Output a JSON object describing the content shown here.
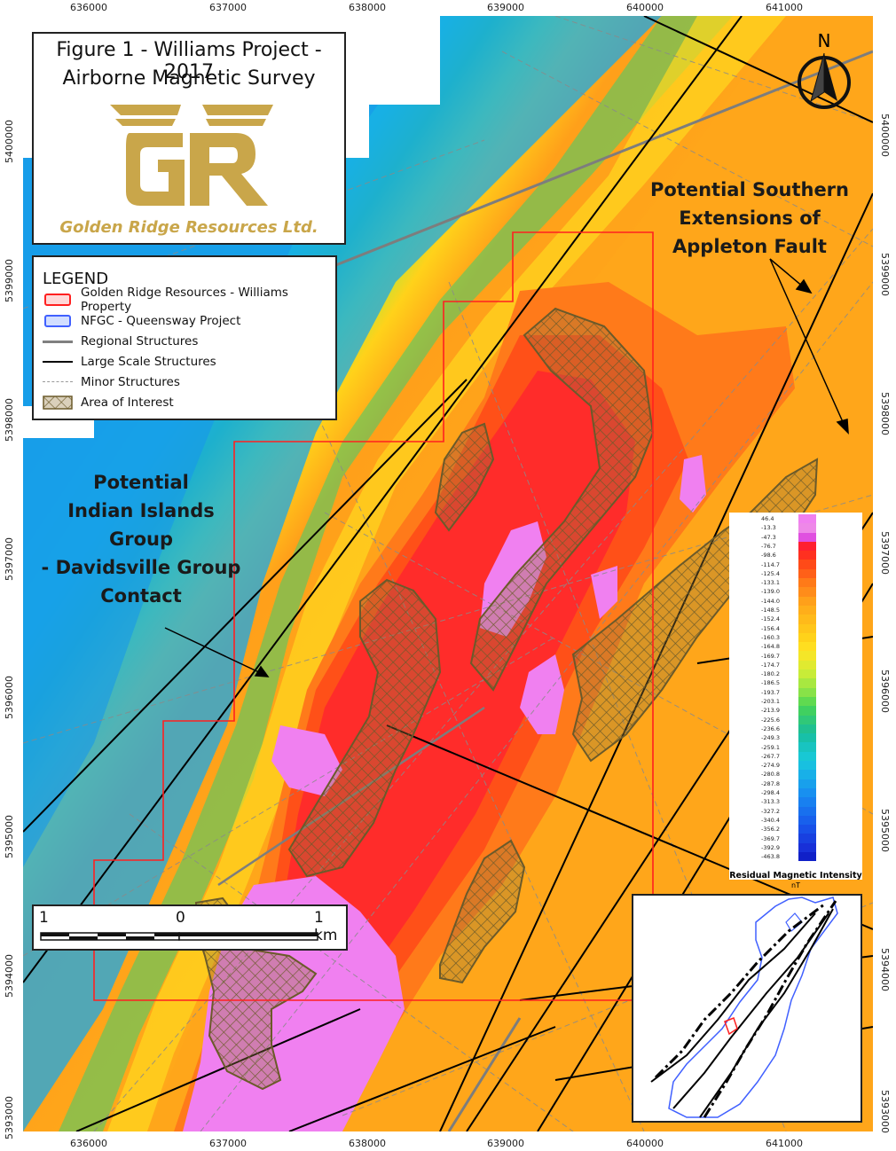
{
  "title": {
    "line1": "Figure 1 - Williams Project - 2017",
    "line2": "Airborne Magnetic Survey"
  },
  "company": {
    "logo_text": "GR",
    "name": "Golden Ridge Resources Ltd."
  },
  "north_arrow": {
    "label": "N",
    "icon": "north-arrow-icon"
  },
  "easting_labels": [
    "636000",
    "637000",
    "638000",
    "639000",
    "640000",
    "641000"
  ],
  "northing_labels": [
    "5393000",
    "5394000",
    "5395000",
    "5396000",
    "5397000",
    "5398000",
    "5399000",
    "5400000"
  ],
  "legend": {
    "title": "LEGEND",
    "items": [
      {
        "label": "Golden Ridge Resources - Williams Property",
        "symbol": "red-outline-box",
        "color": "#ff2020"
      },
      {
        "label": "NFGC - Queensway Project",
        "symbol": "blue-outline-box",
        "color": "#4060ff"
      },
      {
        "label": "Regional Structures",
        "symbol": "gray-line",
        "color": "#808080"
      },
      {
        "label": "Large Scale Structures",
        "symbol": "black-line",
        "color": "#000000"
      },
      {
        "label": "Minor Structures",
        "symbol": "dashed-line",
        "color": "#999999"
      },
      {
        "label": "Area of Interest",
        "symbol": "crosshatch-box",
        "color": "#6b5a2a"
      }
    ]
  },
  "annotations": {
    "contact": "Potential\nIndian Islands\nGroup\n- Davidsville Group\nContact",
    "fault": "Potential Southern\nExtensions of\nAppleton Fault"
  },
  "colorbar": {
    "title": "Residual Magnetic Intensity",
    "unit": "nT",
    "values": [
      "46.4",
      "-13.3",
      "-47.3",
      "-76.7",
      "-98.6",
      "-114.7",
      "-125.4",
      "-133.1",
      "-139.0",
      "-144.0",
      "-148.5",
      "-152.4",
      "-156.4",
      "-160.3",
      "-164.8",
      "-169.7",
      "-174.7",
      "-180.2",
      "-186.5",
      "-193.7",
      "-203.1",
      "-213.9",
      "-225.6",
      "-236.6",
      "-249.3",
      "-259.1",
      "-267.7",
      "-274.9",
      "-280.8",
      "-287.8",
      "-298.4",
      "-313.3",
      "-327.2",
      "-340.4",
      "-356.2",
      "-369.7",
      "-392.9",
      "-463.8"
    ],
    "colors": [
      "#f080f0",
      "#ee88e8",
      "#e050e0",
      "#ff2030",
      "#ff3020",
      "#ff4a18",
      "#ff6018",
      "#ff7a18",
      "#ff8c1a",
      "#ffa01a",
      "#ffae1a",
      "#ffba1a",
      "#ffc61a",
      "#ffd21a",
      "#ffde20",
      "#f4e628",
      "#e0ea30",
      "#c8ec38",
      "#a8e840",
      "#88e248",
      "#60da50",
      "#40d060",
      "#30c878",
      "#20c090",
      "#18c0a8",
      "#18c4c0",
      "#18c8d4",
      "#18c0e0",
      "#18b0e8",
      "#18a0ec",
      "#1890f0",
      "#1880f0",
      "#1870ee",
      "#1860ec",
      "#1850e8",
      "#1840e0",
      "#1830d8",
      "#1020c8"
    ]
  },
  "scale_bar": {
    "left": "1",
    "middle": "0",
    "right": "1 km"
  },
  "colors": {
    "property_outline": "#ff2020",
    "area_of_interest": "#6b5a2a",
    "queensway": "#4060ff"
  }
}
